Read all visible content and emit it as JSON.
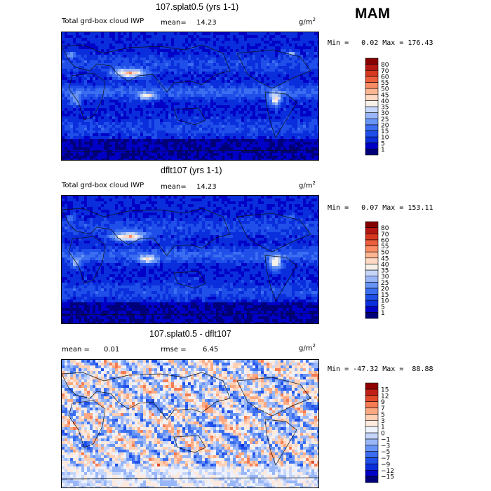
{
  "season": "MAM",
  "colors": {
    "abs_levels": [
      "#00007a",
      "#0000c6",
      "#0a2edc",
      "#1f4ee8",
      "#3a6df0",
      "#6793f5",
      "#98b6f8",
      "#c6d6fb",
      "#f6f0e8",
      "#ffd9c4",
      "#fdb592",
      "#f98c64",
      "#ec5e3c",
      "#d8371f",
      "#b41612",
      "#860000"
    ],
    "diff_levels": [
      "#00007a",
      "#0000c6",
      "#0a2edc",
      "#1f4ee8",
      "#3a6df0",
      "#6793f5",
      "#98b6f8",
      "#c6d6fb",
      "#eef2fd",
      "#fde9de",
      "#ffd0b4",
      "#fca983",
      "#f57b53",
      "#e04a2b",
      "#c02018",
      "#900000"
    ]
  },
  "panels": [
    {
      "title": "107.splat0.5 (yrs 1-1)",
      "variable": "Total grd-box cloud IWP",
      "stat_left": "mean=",
      "stat_left_value": "14.23",
      "units": "g/m",
      "units_sup": "2",
      "minmax": "Min =   0.02 Max = 176.43",
      "chart_data": {
        "type": "heatmap",
        "title": "107.splat0.5 (yrs 1-1)",
        "field": "Total grd-box cloud IWP",
        "units": "g/m2",
        "mean": 14.23,
        "min": 0.02,
        "max": 176.43,
        "colorbar_levels": [
          1,
          5,
          10,
          15,
          20,
          25,
          30,
          35,
          40,
          45,
          50,
          55,
          60,
          70,
          80
        ],
        "colorbar_labels": [
          "1",
          "5",
          "10",
          "15",
          "20",
          "25",
          "30",
          "35",
          "40",
          "45",
          "50",
          "55",
          "60",
          "70",
          "80"
        ]
      }
    },
    {
      "title": "dflt107 (yrs 1-1)",
      "variable": "Total grd-box cloud IWP",
      "stat_left": "mean=",
      "stat_left_value": "14.23",
      "units": "g/m",
      "units_sup": "2",
      "minmax": "Min =   0.07 Max = 153.11",
      "chart_data": {
        "type": "heatmap",
        "title": "dflt107 (yrs 1-1)",
        "field": "Total grd-box cloud IWP",
        "units": "g/m2",
        "mean": 14.23,
        "min": 0.07,
        "max": 153.11,
        "colorbar_levels": [
          1,
          5,
          10,
          15,
          20,
          25,
          30,
          35,
          40,
          45,
          50,
          55,
          60,
          70,
          80
        ],
        "colorbar_labels": [
          "1",
          "5",
          "10",
          "15",
          "20",
          "25",
          "30",
          "35",
          "40",
          "45",
          "50",
          "55",
          "60",
          "70",
          "80"
        ]
      }
    },
    {
      "title": "107.splat0.5 - dflt107",
      "variable": "",
      "stat_left": "mean =",
      "stat_left_value": "0.01",
      "stat_right": "rmse =",
      "stat_right_value": "6.45",
      "units": "g/m",
      "units_sup": "2",
      "minmax": "Min = -47.32 Max =  88.88",
      "chart_data": {
        "type": "heatmap",
        "title": "107.splat0.5 - dflt107",
        "units": "g/m2",
        "mean": 0.01,
        "rmse": 6.45,
        "min": -47.32,
        "max": 88.88,
        "colorbar_levels": [
          -15,
          -12,
          -9,
          -7,
          -5,
          -3,
          -1,
          0,
          1,
          3,
          5,
          7,
          9,
          12,
          15
        ],
        "colorbar_labels": [
          "-15",
          "-12",
          "-9",
          "-7",
          "-5",
          "-3",
          "-1",
          "0",
          "1",
          "3",
          "5",
          "7",
          "9",
          "12",
          "15"
        ]
      }
    }
  ]
}
